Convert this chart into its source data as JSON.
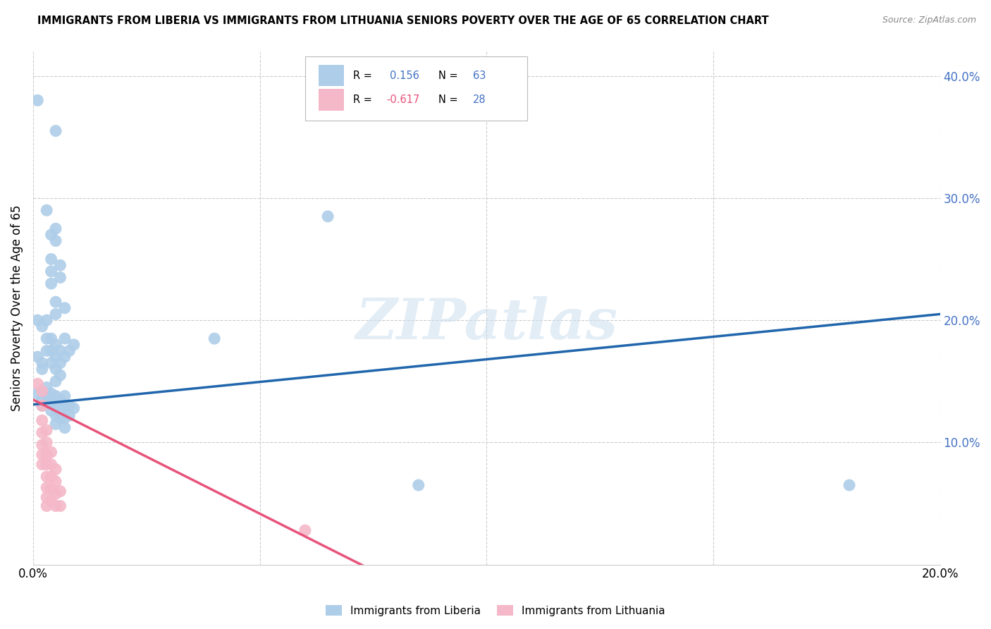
{
  "title": "IMMIGRANTS FROM LIBERIA VS IMMIGRANTS FROM LITHUANIA SENIORS POVERTY OVER THE AGE OF 65 CORRELATION CHART",
  "source": "Source: ZipAtlas.com",
  "ylabel": "Seniors Poverty Over the Age of 65",
  "xlim": [
    0.0,
    0.2
  ],
  "ylim": [
    0.0,
    0.42
  ],
  "xticks": [
    0.0,
    0.05,
    0.1,
    0.15,
    0.2
  ],
  "yticks": [
    0.1,
    0.2,
    0.3,
    0.4
  ],
  "liberia_R": "0.156",
  "liberia_N": "63",
  "lithuania_R": "-0.617",
  "lithuania_N": "28",
  "liberia_color": "#aecde8",
  "liberia_line_color": "#2166ac",
  "lithuania_color": "#f4b8c8",
  "lithuania_line_color": "#e8537a",
  "watermark": "ZIPatlas",
  "liberia_points": [
    [
      0.001,
      0.38
    ],
    [
      0.005,
      0.355
    ],
    [
      0.001,
      0.2
    ],
    [
      0.002,
      0.195
    ],
    [
      0.003,
      0.29
    ],
    [
      0.004,
      0.27
    ],
    [
      0.004,
      0.25
    ],
    [
      0.004,
      0.24
    ],
    [
      0.004,
      0.23
    ],
    [
      0.005,
      0.275
    ],
    [
      0.005,
      0.265
    ],
    [
      0.005,
      0.215
    ],
    [
      0.005,
      0.205
    ],
    [
      0.006,
      0.245
    ],
    [
      0.006,
      0.235
    ],
    [
      0.007,
      0.21
    ],
    [
      0.001,
      0.17
    ],
    [
      0.002,
      0.165
    ],
    [
      0.002,
      0.16
    ],
    [
      0.003,
      0.2
    ],
    [
      0.003,
      0.185
    ],
    [
      0.003,
      0.175
    ],
    [
      0.004,
      0.185
    ],
    [
      0.004,
      0.175
    ],
    [
      0.004,
      0.165
    ],
    [
      0.005,
      0.18
    ],
    [
      0.005,
      0.17
    ],
    [
      0.005,
      0.16
    ],
    [
      0.005,
      0.15
    ],
    [
      0.006,
      0.175
    ],
    [
      0.006,
      0.165
    ],
    [
      0.006,
      0.155
    ],
    [
      0.007,
      0.185
    ],
    [
      0.007,
      0.17
    ],
    [
      0.008,
      0.175
    ],
    [
      0.009,
      0.18
    ],
    [
      0.001,
      0.14
    ],
    [
      0.002,
      0.135
    ],
    [
      0.002,
      0.13
    ],
    [
      0.003,
      0.145
    ],
    [
      0.003,
      0.138
    ],
    [
      0.003,
      0.132
    ],
    [
      0.004,
      0.14
    ],
    [
      0.004,
      0.133
    ],
    [
      0.004,
      0.126
    ],
    [
      0.005,
      0.138
    ],
    [
      0.005,
      0.13
    ],
    [
      0.005,
      0.122
    ],
    [
      0.005,
      0.115
    ],
    [
      0.006,
      0.135
    ],
    [
      0.006,
      0.128
    ],
    [
      0.006,
      0.12
    ],
    [
      0.007,
      0.138
    ],
    [
      0.007,
      0.13
    ],
    [
      0.007,
      0.12
    ],
    [
      0.007,
      0.112
    ],
    [
      0.008,
      0.13
    ],
    [
      0.008,
      0.122
    ],
    [
      0.009,
      0.128
    ],
    [
      0.04,
      0.185
    ],
    [
      0.065,
      0.285
    ],
    [
      0.085,
      0.065
    ],
    [
      0.18,
      0.065
    ]
  ],
  "lithuania_points": [
    [
      0.001,
      0.148
    ],
    [
      0.002,
      0.142
    ],
    [
      0.002,
      0.13
    ],
    [
      0.002,
      0.118
    ],
    [
      0.002,
      0.108
    ],
    [
      0.002,
      0.098
    ],
    [
      0.002,
      0.09
    ],
    [
      0.002,
      0.082
    ],
    [
      0.003,
      0.11
    ],
    [
      0.003,
      0.1
    ],
    [
      0.003,
      0.09
    ],
    [
      0.003,
      0.082
    ],
    [
      0.003,
      0.072
    ],
    [
      0.003,
      0.063
    ],
    [
      0.003,
      0.055
    ],
    [
      0.003,
      0.048
    ],
    [
      0.004,
      0.092
    ],
    [
      0.004,
      0.082
    ],
    [
      0.004,
      0.072
    ],
    [
      0.004,
      0.062
    ],
    [
      0.004,
      0.052
    ],
    [
      0.005,
      0.078
    ],
    [
      0.005,
      0.068
    ],
    [
      0.005,
      0.058
    ],
    [
      0.005,
      0.048
    ],
    [
      0.006,
      0.06
    ],
    [
      0.006,
      0.048
    ],
    [
      0.06,
      0.028
    ]
  ],
  "liberia_trend_x": [
    0.0,
    0.2
  ],
  "liberia_trend_y": [
    0.131,
    0.205
  ],
  "lithuania_trend_x": [
    0.0,
    0.075
  ],
  "lithuania_trend_y": [
    0.135,
    -0.005
  ]
}
